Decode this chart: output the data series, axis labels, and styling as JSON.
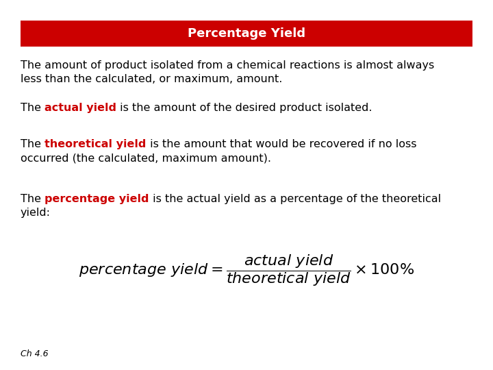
{
  "title": "Percentage Yield",
  "title_bg_color": "#cc0000",
  "title_text_color": "#ffffff",
  "bg_color": "#ffffff",
  "text_color": "#000000",
  "red_color": "#cc0000",
  "para1_line1": "The amount of product isolated from a chemical reactions is almost always",
  "para1_line2": "less than the calculated, or maximum, amount.",
  "para2_prefix": "The ",
  "para2_highlight": "actual yield",
  "para2_suffix": " is the amount of the desired product isolated.",
  "para3_prefix": "The ",
  "para3_highlight": "theoretical yield",
  "para3_suffix": " is the amount that would be recovered if no loss",
  "para3_line2": "occurred (the calculated, maximum amount).",
  "para4_prefix": "The ",
  "para4_highlight": "percentage yield",
  "para4_suffix": " is the actual yield as a percentage of the theoretical",
  "para4_line2": "yield:",
  "footnote": "Ch 4.6",
  "font_size_body": 11.5,
  "font_size_title": 13,
  "font_size_formula": 11,
  "font_size_footnote": 9
}
